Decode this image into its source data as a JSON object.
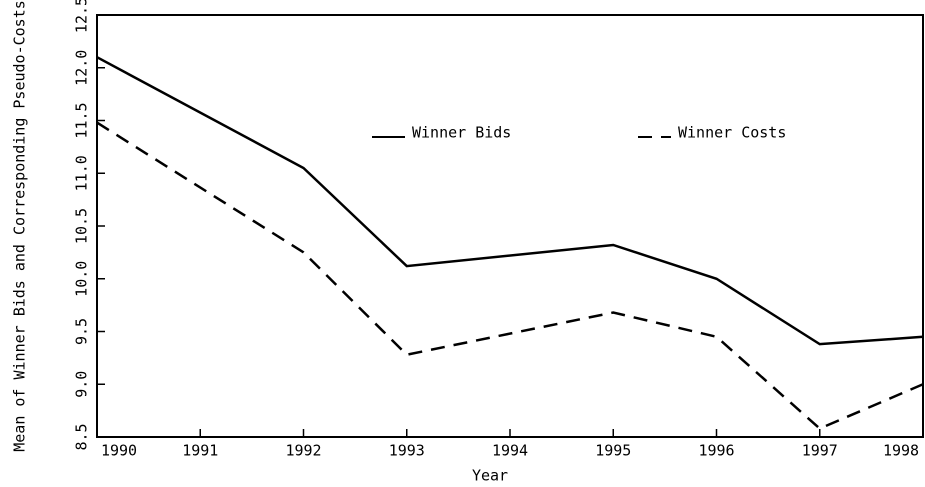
{
  "chart_data": {
    "type": "line",
    "xlabel": "Year",
    "ylabel": "Mean of Winner Bids and Corresponding Pseudo-Costs",
    "x": [
      1990,
      1992,
      1993,
      1995,
      1996,
      1997,
      1998
    ],
    "series": [
      {
        "name": "Winner Bids",
        "color": "#000000",
        "dash": "solid",
        "values": [
          12.1,
          11.05,
          10.12,
          10.32,
          10.0,
          9.38,
          9.45
        ]
      },
      {
        "name": "Winner Costs",
        "color": "#000000",
        "dash": "dashed",
        "values": [
          11.48,
          10.25,
          9.28,
          9.68,
          9.45,
          8.58,
          9.0
        ]
      }
    ],
    "xlim": [
      1990,
      1998
    ],
    "xticks": [
      1990,
      1991,
      1992,
      1993,
      1994,
      1995,
      1996,
      1997,
      1998
    ],
    "ylim": [
      8.5,
      12.5
    ],
    "yticks": [
      8.5,
      {
        "value": 9,
        "label": "9.0"
      },
      9.5,
      {
        "value": 10,
        "label": "10.0"
      },
      10.5,
      {
        "value": 11,
        "label": "11.0"
      },
      11.5,
      {
        "value": 12,
        "label": "12.0"
      },
      12.5
    ],
    "grid": false,
    "legend": "top"
  }
}
